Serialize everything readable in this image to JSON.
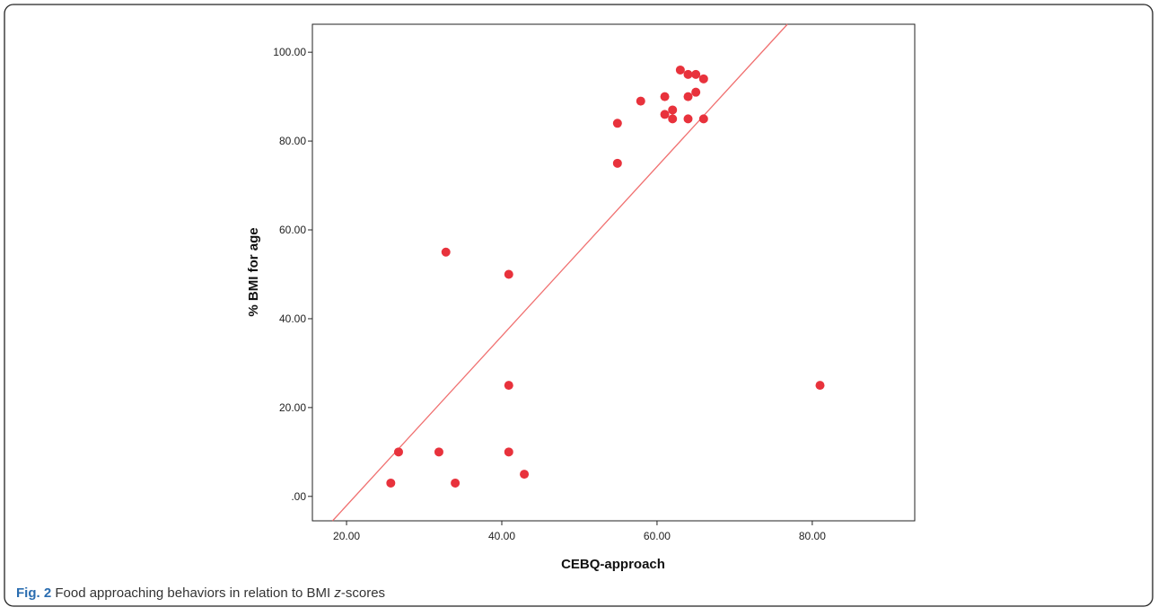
{
  "chart_data": {
    "type": "scatter",
    "x_label": "CEBQ-approach",
    "y_label": "% BMI for age",
    "color": "#e8323c",
    "fit_color": "#f07070",
    "x": [
      25.7,
      26.7,
      31.9,
      34,
      32.8,
      40.9,
      40.9,
      40.9,
      42.9,
      54.9,
      54.9,
      57.9,
      61,
      61,
      62,
      62,
      63,
      64,
      65,
      66,
      64,
      65,
      64,
      66,
      81
    ],
    "values": [
      3,
      10,
      10,
      3,
      55,
      50,
      25,
      10,
      5,
      84,
      75,
      89,
      90,
      86,
      87,
      85,
      96,
      95,
      95,
      94,
      90,
      91,
      85,
      85,
      25
    ],
    "fit_line": {
      "x": [
        18.2,
        76.8
      ],
      "y": [
        -5.5,
        106.3
      ]
    },
    "xlim": [
      15.6,
      93.2
    ],
    "ylim": [
      -5.5,
      106.3
    ],
    "xticks": [
      {
        "value": 20,
        "label": "20.00"
      },
      {
        "value": 40,
        "label": "40.00"
      },
      {
        "value": 60,
        "label": "60.00"
      },
      {
        "value": 80,
        "label": "80.00"
      }
    ],
    "yticks": [
      {
        "value": 0,
        "label": ".00"
      },
      {
        "value": 20,
        "label": "20.00"
      },
      {
        "value": 40,
        "label": "40.00"
      },
      {
        "value": 60,
        "label": "60.00"
      },
      {
        "value": 80,
        "label": "80.00"
      },
      {
        "value": 100,
        "label": "100.00"
      }
    ]
  },
  "caption": {
    "label": "Fig. 2",
    "text": "Food approaching behaviors in relation to BMI ",
    "italic": "z",
    "after": "-scores"
  }
}
